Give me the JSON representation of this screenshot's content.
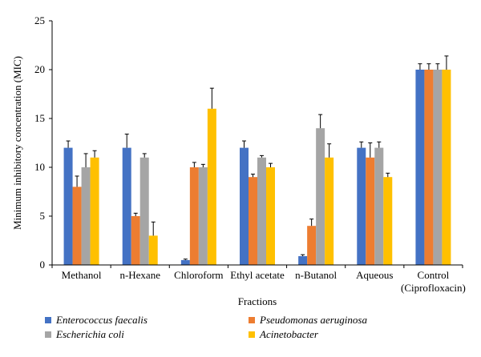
{
  "chart_data": {
    "type": "bar",
    "xlabel": "Fractions",
    "ylabel": "Minimum inhibitory concentration (MIC)",
    "ylim": [
      0,
      25
    ],
    "yticks": [
      0,
      5,
      10,
      15,
      20,
      25
    ],
    "grid": false,
    "legend_position": "bottom",
    "categories": [
      [
        "Methanol"
      ],
      [
        "n-Hexane"
      ],
      [
        "Chloroform"
      ],
      [
        "Ethyl acetate"
      ],
      [
        "n-Butanol"
      ],
      [
        "Aqueous"
      ],
      [
        "Control",
        "(Ciprofloxacin)"
      ]
    ],
    "series": [
      {
        "name": "Enterococcus faecalis",
        "color": "#4472C4",
        "values": [
          12,
          12,
          0.5,
          12,
          0.9,
          12,
          20
        ],
        "errors": [
          0.7,
          1.4,
          0.1,
          0.7,
          0.15,
          0.6,
          0.6
        ]
      },
      {
        "name": "Pseudomonas aeruginosa",
        "color": "#ED7D31",
        "values": [
          8,
          5,
          10,
          9,
          4,
          11,
          20
        ],
        "errors": [
          1.1,
          0.3,
          0.5,
          0.3,
          0.7,
          1.5,
          0.6
        ]
      },
      {
        "name": "Escherichia coli",
        "color": "#A5A5A5",
        "values": [
          10,
          11,
          10,
          11,
          14,
          12,
          20
        ],
        "errors": [
          1.4,
          0.4,
          0.3,
          0.2,
          1.4,
          0.6,
          0.6
        ]
      },
      {
        "name": "Acinetobacter",
        "color": "#FFC000",
        "values": [
          11,
          3,
          16,
          10,
          11,
          9,
          20
        ],
        "errors": [
          0.7,
          1.4,
          2.1,
          0.4,
          1.4,
          0.4,
          1.4
        ]
      }
    ]
  }
}
